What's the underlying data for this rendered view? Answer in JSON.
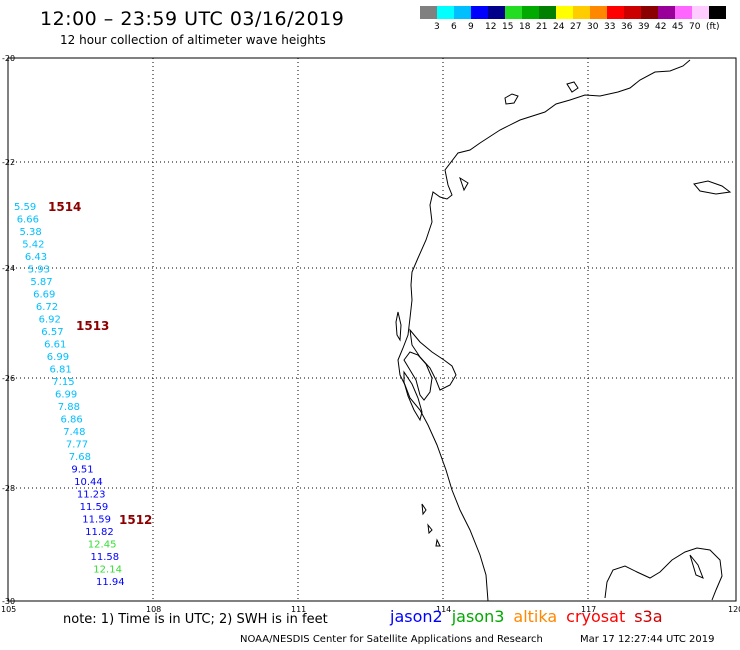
{
  "header": {
    "title": "12:00 – 23:59 UTC 03/16/2019",
    "subtitle": "12 hour collection of altimeter wave heights"
  },
  "legend": {
    "colors": [
      "#808080",
      "#00ffff",
      "#00bfff",
      "#0000ff",
      "#00008b",
      "#22dd22",
      "#00aa00",
      "#008000",
      "#ffff00",
      "#ffcc00",
      "#ff8800",
      "#ff0000",
      "#cc0000",
      "#8b0000",
      "#990099",
      "#ff66ff",
      "#ffccff",
      "#000000"
    ],
    "labels": [
      "3",
      "6",
      "9",
      "12",
      "15",
      "18",
      "21",
      "24",
      "27",
      "30",
      "33",
      "36",
      "39",
      "42",
      "45",
      "70",
      "(ft)"
    ]
  },
  "map": {
    "lon_ticks": [
      "105",
      "108",
      "111",
      "114",
      "117",
      "120"
    ],
    "lat_ticks": [
      "-20",
      "-22",
      "-24",
      "-26",
      "-28",
      "-30"
    ]
  },
  "observations": [
    {
      "v": "5.59",
      "c": "#00bfff"
    },
    {
      "v": "6.66",
      "c": "#00bfff"
    },
    {
      "v": "5.38",
      "c": "#00bfff"
    },
    {
      "v": "5.42",
      "c": "#00bfff"
    },
    {
      "v": "6.43",
      "c": "#00bfff"
    },
    {
      "v": "5.93",
      "c": "#00bfff"
    },
    {
      "v": "5.87",
      "c": "#00bfff"
    },
    {
      "v": "6.69",
      "c": "#00bfff"
    },
    {
      "v": "6.72",
      "c": "#00bfff"
    },
    {
      "v": "6.92",
      "c": "#00bfff"
    },
    {
      "v": "6.57",
      "c": "#00bfff"
    },
    {
      "v": "6.61",
      "c": "#00bfff"
    },
    {
      "v": "6.99",
      "c": "#00bfff"
    },
    {
      "v": "6.81",
      "c": "#00bfff"
    },
    {
      "v": "7.15",
      "c": "#00bfff"
    },
    {
      "v": "6.99",
      "c": "#00bfff"
    },
    {
      "v": "7.88",
      "c": "#00bfff"
    },
    {
      "v": "6.86",
      "c": "#00bfff"
    },
    {
      "v": "7.48",
      "c": "#00bfff"
    },
    {
      "v": "7.77",
      "c": "#00bfff"
    },
    {
      "v": "7.68",
      "c": "#00bfff"
    },
    {
      "v": "9.51",
      "c": "#0000ff"
    },
    {
      "v": "10.44",
      "c": "#0000ff"
    },
    {
      "v": "11.23",
      "c": "#0000ff"
    },
    {
      "v": "11.59",
      "c": "#0000ff"
    },
    {
      "v": "11.59",
      "c": "#0000ff"
    },
    {
      "v": "11.82",
      "c": "#0000ff"
    },
    {
      "v": "12.45",
      "c": "#33dd33"
    },
    {
      "v": "11.58",
      "c": "#0000ff"
    },
    {
      "v": "12.14",
      "c": "#33dd33"
    },
    {
      "v": "11.94",
      "c": "#0000ff"
    }
  ],
  "passes": [
    {
      "id": "1514",
      "c": "#8b0000"
    },
    {
      "id": "1513",
      "c": "#8b0000"
    },
    {
      "id": "1512",
      "c": "#8b0000"
    }
  ],
  "note": "note: 1) Time is in UTC; 2) SWH is in feet",
  "satellites": [
    {
      "name": "jason2",
      "c": "#0000ff"
    },
    {
      "name": "jason3",
      "c": "#00aa00"
    },
    {
      "name": "altika",
      "c": "#ff8800"
    },
    {
      "name": "cryosat",
      "c": "#ff0000"
    },
    {
      "name": "s3a",
      "c": "#cc0000"
    }
  ],
  "footer": {
    "center": "NOAA/NESDIS Center for Satellite Applications and Research",
    "timestamp": "Mar 17 12:27:44 UTC 2019"
  }
}
